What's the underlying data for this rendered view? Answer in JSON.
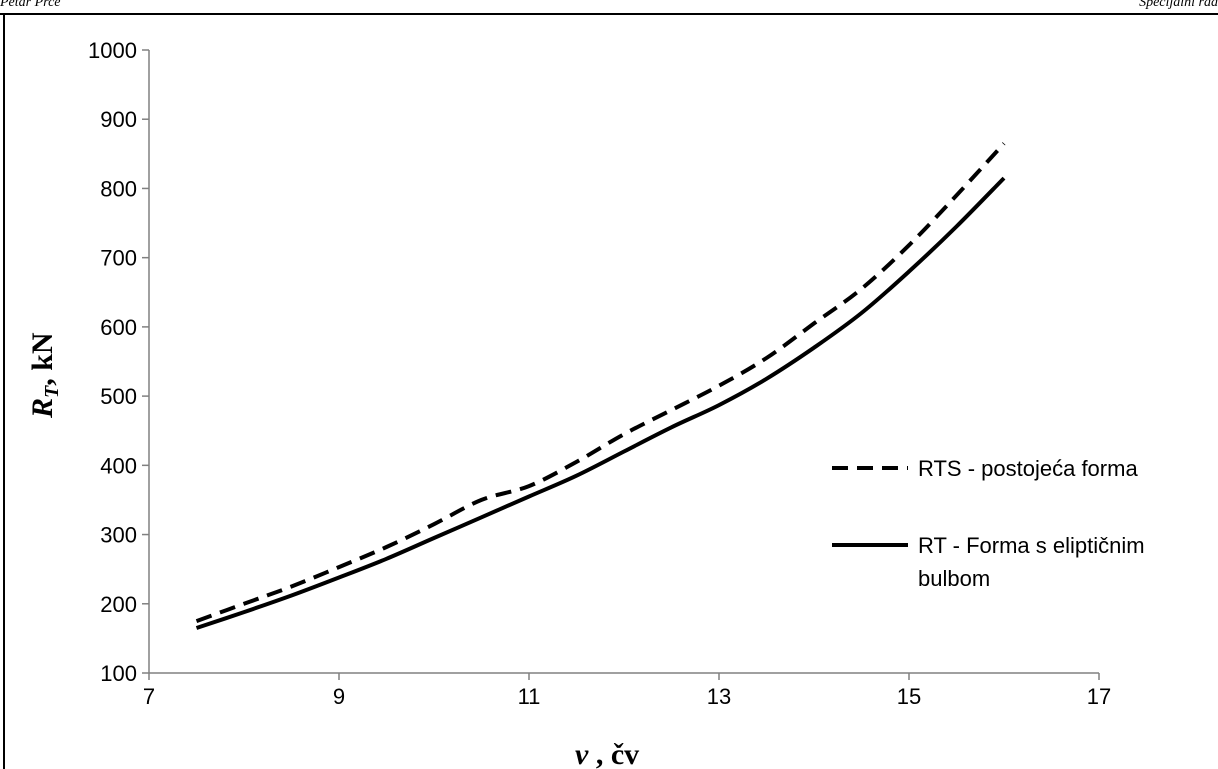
{
  "header": {
    "left": "Petar Prce",
    "right": "Specijalni rad"
  },
  "chart_data": {
    "type": "line",
    "xlabel": "v , čv",
    "ylabel": "RT, kN",
    "xlim": [
      7,
      17
    ],
    "ylim": [
      100,
      1000
    ],
    "xticks": [
      7,
      9,
      11,
      13,
      15,
      17
    ],
    "yticks": [
      100,
      200,
      300,
      400,
      500,
      600,
      700,
      800,
      900,
      1000
    ],
    "grid": false,
    "legend_position": "right",
    "series": [
      {
        "name": "RTS - postojeća forma",
        "style": "dashed",
        "x": [
          7.5,
          8.0,
          8.5,
          9.0,
          9.5,
          10.0,
          10.5,
          11.0,
          11.5,
          12.0,
          12.5,
          13.0,
          13.5,
          14.0,
          14.5,
          15.0,
          15.5,
          16.0
        ],
        "y": [
          175,
          200,
          225,
          253,
          282,
          315,
          350,
          370,
          405,
          445,
          480,
          515,
          555,
          605,
          655,
          718,
          790,
          865
        ]
      },
      {
        "name": "RT - Forma s eliptičnim bulbom",
        "name_lines": [
          "RT - Forma s eliptičnim",
          "bulbom"
        ],
        "style": "solid",
        "x": [
          7.5,
          8.0,
          8.5,
          9.0,
          9.5,
          10.0,
          10.5,
          11.0,
          11.5,
          12.0,
          12.5,
          13.0,
          13.5,
          14.0,
          14.5,
          15.0,
          15.5,
          16.0
        ],
        "y": [
          165,
          188,
          212,
          238,
          265,
          295,
          325,
          355,
          385,
          420,
          455,
          487,
          525,
          570,
          620,
          680,
          745,
          815
        ]
      }
    ],
    "colors": {
      "line": "#000000",
      "axis": "#808080",
      "frame": "#000000"
    }
  }
}
